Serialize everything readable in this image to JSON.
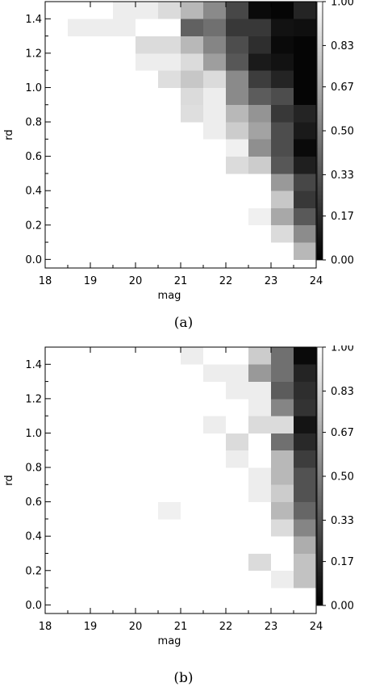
{
  "chart_data": [
    {
      "id": "a",
      "type": "heatmap",
      "caption": "(a)",
      "xlabel": "mag",
      "ylabel": "rd",
      "xlim": [
        18,
        24
      ],
      "ylim": [
        -0.05,
        1.5
      ],
      "x_ticks": [
        "18",
        "19",
        "20",
        "21",
        "22",
        "23",
        "24"
      ],
      "y_ticks": [
        "0.0",
        "0.2",
        "0.4",
        "0.6",
        "0.8",
        "1.0",
        "1.2",
        "1.4"
      ],
      "colorbar": {
        "range": [
          0,
          1
        ],
        "ticks": [
          "1.00",
          "0.83",
          "0.67",
          "0.50",
          "0.33",
          "0.17",
          "0.00"
        ],
        "colormap": "grayscale (0 = black, 1 = white)"
      },
      "bin_width_mag": 0.5,
      "bin_height_rd": 0.1,
      "mag_bins": [
        18.5,
        19.0,
        19.5,
        20.0,
        20.5,
        21.0,
        21.5,
        22.0,
        22.5,
        23.0,
        23.5
      ],
      "rd_bins": [
        0.0,
        0.1,
        0.2,
        0.3,
        0.4,
        0.5,
        0.6,
        0.7,
        0.8,
        0.9,
        1.0,
        1.1,
        1.2,
        1.3,
        1.4
      ],
      "values": [
        [
          1.0,
          1.0,
          1.0,
          1.0,
          1.0,
          1.0,
          1.0,
          1.0,
          1.0,
          1.0,
          0.72
        ],
        [
          1.0,
          1.0,
          1.0,
          1.0,
          1.0,
          1.0,
          1.0,
          1.0,
          1.0,
          0.86,
          0.55
        ],
        [
          1.0,
          1.0,
          1.0,
          1.0,
          1.0,
          1.0,
          1.0,
          1.0,
          0.94,
          0.66,
          0.35
        ],
        [
          1.0,
          1.0,
          1.0,
          1.0,
          1.0,
          1.0,
          1.0,
          1.0,
          1.0,
          0.78,
          0.22
        ],
        [
          1.0,
          1.0,
          1.0,
          1.0,
          1.0,
          1.0,
          1.0,
          1.0,
          1.0,
          0.6,
          0.28
        ],
        [
          1.0,
          1.0,
          1.0,
          1.0,
          1.0,
          1.0,
          1.0,
          0.86,
          0.8,
          0.34,
          0.12
        ],
        [
          1.0,
          1.0,
          1.0,
          1.0,
          1.0,
          1.0,
          1.0,
          0.94,
          0.56,
          0.3,
          0.04
        ],
        [
          1.0,
          1.0,
          1.0,
          1.0,
          1.0,
          1.0,
          0.93,
          0.8,
          0.64,
          0.3,
          0.1
        ],
        [
          1.0,
          1.0,
          1.0,
          1.0,
          1.0,
          0.87,
          0.93,
          0.72,
          0.58,
          0.22,
          0.14
        ],
        [
          1.0,
          1.0,
          1.0,
          1.0,
          1.0,
          0.86,
          0.93,
          0.54,
          0.36,
          0.3,
          0.02
        ],
        [
          1.0,
          1.0,
          1.0,
          1.0,
          0.87,
          0.78,
          0.86,
          0.54,
          0.24,
          0.14,
          0.02
        ],
        [
          1.0,
          1.0,
          1.0,
          0.93,
          0.93,
          0.86,
          0.62,
          0.34,
          0.1,
          0.07,
          0.02
        ],
        [
          1.0,
          1.0,
          1.0,
          0.86,
          0.86,
          0.72,
          0.52,
          0.3,
          0.18,
          0.04,
          0.02
        ],
        [
          0.93,
          0.93,
          0.93,
          1.0,
          1.0,
          0.38,
          0.44,
          0.22,
          0.22,
          0.07,
          0.06
        ],
        [
          1.0,
          1.0,
          0.93,
          0.93,
          0.86,
          0.72,
          0.54,
          0.28,
          0.04,
          0.02,
          0.14
        ]
      ]
    },
    {
      "id": "b",
      "type": "heatmap",
      "caption": "(b)",
      "xlabel": "mag",
      "ylabel": "rd",
      "xlim": [
        18,
        24
      ],
      "ylim": [
        -0.05,
        1.5
      ],
      "x_ticks": [
        "18",
        "19",
        "20",
        "21",
        "22",
        "23",
        "24"
      ],
      "y_ticks": [
        "0.0",
        "0.2",
        "0.4",
        "0.6",
        "0.8",
        "1.0",
        "1.2",
        "1.4"
      ],
      "colorbar": {
        "range": [
          0,
          1
        ],
        "ticks": [
          "1.00",
          "0.83",
          "0.67",
          "0.50",
          "0.33",
          "0.17",
          "0.00"
        ],
        "colormap": "grayscale (0 = black, 1 = white)"
      },
      "bin_width_mag": 0.5,
      "bin_height_rd": 0.1,
      "mag_bins": [
        18.5,
        19.0,
        19.5,
        20.0,
        20.5,
        21.0,
        21.5,
        22.0,
        22.5,
        23.0,
        23.5
      ],
      "rd_bins": [
        0.0,
        0.1,
        0.2,
        0.3,
        0.4,
        0.5,
        0.6,
        0.7,
        0.8,
        0.9,
        1.0,
        1.1,
        1.2,
        1.3,
        1.4
      ],
      "values": [
        [
          1.0,
          1.0,
          1.0,
          1.0,
          1.0,
          1.0,
          1.0,
          1.0,
          1.0,
          1.0,
          1.0
        ],
        [
          1.0,
          1.0,
          1.0,
          1.0,
          1.0,
          1.0,
          1.0,
          1.0,
          1.0,
          0.93,
          0.76
        ],
        [
          1.0,
          1.0,
          1.0,
          1.0,
          1.0,
          1.0,
          1.0,
          1.0,
          0.86,
          1.0,
          0.76
        ],
        [
          1.0,
          1.0,
          1.0,
          1.0,
          1.0,
          1.0,
          1.0,
          1.0,
          1.0,
          1.0,
          0.68
        ],
        [
          1.0,
          1.0,
          1.0,
          1.0,
          1.0,
          1.0,
          1.0,
          1.0,
          1.0,
          0.86,
          0.52
        ],
        [
          1.0,
          1.0,
          1.0,
          1.0,
          0.94,
          1.0,
          1.0,
          1.0,
          1.0,
          0.72,
          0.4
        ],
        [
          1.0,
          1.0,
          1.0,
          1.0,
          1.0,
          1.0,
          1.0,
          1.0,
          0.93,
          0.8,
          0.32
        ],
        [
          1.0,
          1.0,
          1.0,
          1.0,
          1.0,
          1.0,
          1.0,
          1.0,
          0.93,
          0.72,
          0.32
        ],
        [
          1.0,
          1.0,
          1.0,
          1.0,
          1.0,
          1.0,
          1.0,
          0.93,
          1.0,
          0.72,
          0.24
        ],
        [
          1.0,
          1.0,
          1.0,
          1.0,
          1.0,
          1.0,
          1.0,
          0.86,
          1.0,
          0.44,
          0.16
        ],
        [
          1.0,
          1.0,
          1.0,
          1.0,
          1.0,
          1.0,
          0.93,
          1.0,
          0.86,
          0.86,
          0.08
        ],
        [
          1.0,
          1.0,
          1.0,
          1.0,
          1.0,
          1.0,
          1.0,
          1.0,
          0.93,
          0.52,
          0.2
        ],
        [
          1.0,
          1.0,
          1.0,
          1.0,
          1.0,
          1.0,
          1.0,
          0.93,
          0.93,
          0.36,
          0.18
        ],
        [
          1.0,
          1.0,
          1.0,
          1.0,
          1.0,
          1.0,
          0.93,
          0.93,
          0.6,
          0.44,
          0.14
        ],
        [
          1.0,
          1.0,
          1.0,
          1.0,
          1.0,
          0.93,
          1.0,
          1.0,
          0.8,
          0.44,
          0.04
        ]
      ]
    }
  ]
}
